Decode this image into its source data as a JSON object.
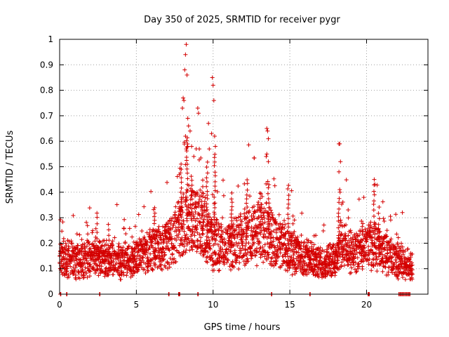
{
  "chart_data": {
    "type": "scatter",
    "title": "Day 350 of 2025, SRMTID for receiver pygr",
    "xlabel": "GPS time / hours",
    "ylabel": "SRMTID / TECUs",
    "xlim": [
      0,
      24
    ],
    "ylim": [
      0,
      1
    ],
    "x_ticks": [
      0,
      5,
      10,
      15,
      20
    ],
    "x_tick_labels": [
      "0",
      "5",
      "10",
      "15",
      "20"
    ],
    "y_ticks": [
      0,
      0.1,
      0.2,
      0.3,
      0.4,
      0.5,
      0.6,
      0.7,
      0.8,
      0.9,
      1
    ],
    "y_tick_labels": [
      "0",
      "0.1",
      "0.2",
      "0.3",
      "0.4",
      "0.5",
      "0.6",
      "0.7",
      "0.8",
      "0.9",
      "1"
    ],
    "grid": true,
    "marker": "+",
    "series": [
      {
        "name": "SRMTID",
        "color": "#d40000",
        "baseline_profile": [
          [
            0.0,
            0.15
          ],
          [
            1.0,
            0.13
          ],
          [
            2.0,
            0.14
          ],
          [
            3.0,
            0.14
          ],
          [
            4.0,
            0.13
          ],
          [
            5.0,
            0.14
          ],
          [
            6.0,
            0.17
          ],
          [
            7.0,
            0.19
          ],
          [
            7.6,
            0.23
          ],
          [
            8.0,
            0.27
          ],
          [
            8.5,
            0.3
          ],
          [
            9.0,
            0.28
          ],
          [
            9.5,
            0.25
          ],
          [
            10.0,
            0.2
          ],
          [
            11.0,
            0.18
          ],
          [
            12.0,
            0.22
          ],
          [
            13.0,
            0.24
          ],
          [
            13.5,
            0.25
          ],
          [
            14.0,
            0.2
          ],
          [
            15.0,
            0.17
          ],
          [
            16.0,
            0.14
          ],
          [
            17.0,
            0.12
          ],
          [
            18.0,
            0.13
          ],
          [
            18.3,
            0.2
          ],
          [
            19.0,
            0.16
          ],
          [
            20.0,
            0.18
          ],
          [
            20.5,
            0.2
          ],
          [
            21.0,
            0.17
          ],
          [
            22.0,
            0.14
          ],
          [
            23.0,
            0.1
          ]
        ],
        "peak_points": [
          [
            8.0,
            0.73
          ],
          [
            8.05,
            0.77
          ],
          [
            8.1,
            0.76
          ],
          [
            8.15,
            0.88
          ],
          [
            8.2,
            0.94
          ],
          [
            8.25,
            0.98
          ],
          [
            8.3,
            0.86
          ],
          [
            8.35,
            0.69
          ],
          [
            8.4,
            0.66
          ],
          [
            8.5,
            0.64
          ],
          [
            8.6,
            0.58
          ],
          [
            8.2,
            0.62
          ],
          [
            8.25,
            0.57
          ],
          [
            9.0,
            0.73
          ],
          [
            9.05,
            0.71
          ],
          [
            9.1,
            0.57
          ],
          [
            9.7,
            0.67
          ],
          [
            9.75,
            0.57
          ],
          [
            9.9,
            0.63
          ],
          [
            9.95,
            0.85
          ],
          [
            10.0,
            0.82
          ],
          [
            10.05,
            0.76
          ],
          [
            10.1,
            0.62
          ],
          [
            10.15,
            0.58
          ],
          [
            13.5,
            0.65
          ],
          [
            13.55,
            0.64
          ],
          [
            13.6,
            0.61
          ],
          [
            13.5,
            0.55
          ],
          [
            13.6,
            0.52
          ],
          [
            18.2,
            0.59
          ],
          [
            18.25,
            0.59
          ],
          [
            18.3,
            0.52
          ],
          [
            18.2,
            0.48
          ],
          [
            18.25,
            0.41
          ],
          [
            20.5,
            0.45
          ],
          [
            20.55,
            0.43
          ]
        ],
        "zero_points": [
          0.05,
          0.45,
          2.6,
          7.1,
          7.75,
          7.8,
          9.0,
          13.8,
          16.3,
          20.1,
          20.15,
          22.1,
          22.2,
          22.3,
          22.4,
          22.5,
          22.6,
          22.7,
          22.8
        ]
      }
    ]
  }
}
